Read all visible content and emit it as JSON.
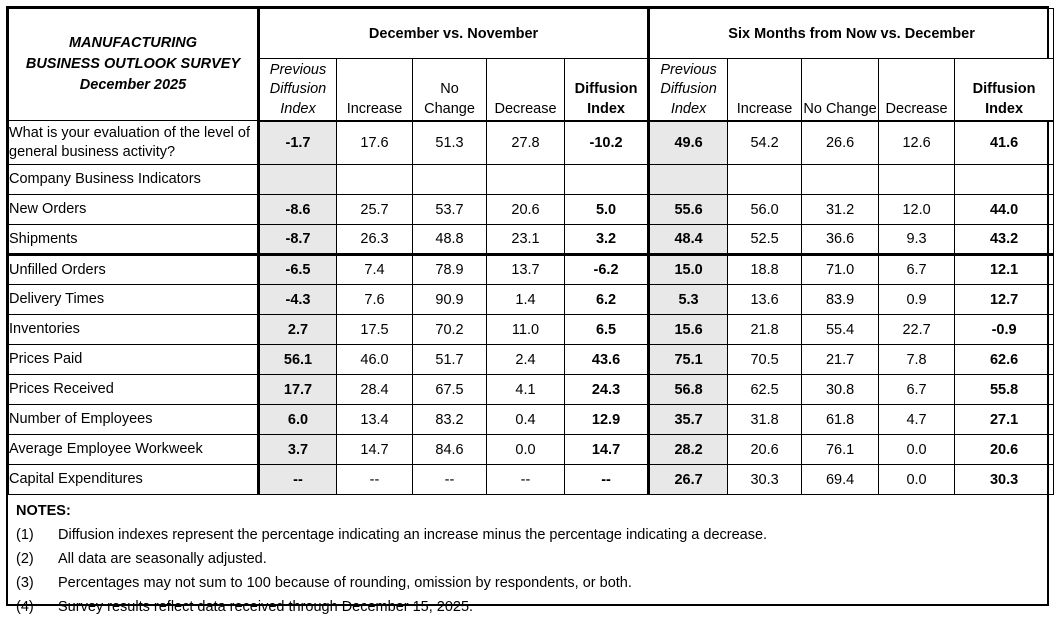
{
  "page": {
    "title_lines": [
      "MANUFACTURING",
      "BUSINESS OUTLOOK SURVEY",
      "December 2025"
    ]
  },
  "table": {
    "section_headers": [
      "December vs. November",
      "Six Months from Now vs. December"
    ],
    "sub_headers": [
      "Previous Diffusion Index",
      "Increase",
      "No Change",
      "Decrease",
      "Diffusion Index"
    ],
    "rows": [
      {
        "label": "What is your evaluation of the level of general business activity?",
        "tall": true,
        "thick_bottom": false,
        "dec_vs_nov": [
          "-1.7",
          "17.6",
          "51.3",
          "27.8",
          "-10.2"
        ],
        "six_months": [
          "49.6",
          "54.2",
          "26.6",
          "12.6",
          "41.6"
        ]
      },
      {
        "label": "Company Business Indicators",
        "tall": false,
        "thick_bottom": false,
        "dec_vs_nov": [
          "",
          "",
          "",
          "",
          ""
        ],
        "six_months": [
          "",
          "",
          "",
          "",
          ""
        ]
      },
      {
        "label": "New Orders",
        "tall": false,
        "thick_bottom": false,
        "dec_vs_nov": [
          "-8.6",
          "25.7",
          "53.7",
          "20.6",
          "5.0"
        ],
        "six_months": [
          "55.6",
          "56.0",
          "31.2",
          "12.0",
          "44.0"
        ]
      },
      {
        "label": "Shipments",
        "tall": false,
        "thick_bottom": true,
        "dec_vs_nov": [
          "-8.7",
          "26.3",
          "48.8",
          "23.1",
          "3.2"
        ],
        "six_months": [
          "48.4",
          "52.5",
          "36.6",
          "9.3",
          "43.2"
        ]
      },
      {
        "label": "Unfilled Orders",
        "tall": false,
        "thick_bottom": false,
        "dec_vs_nov": [
          "-6.5",
          "7.4",
          "78.9",
          "13.7",
          "-6.2"
        ],
        "six_months": [
          "15.0",
          "18.8",
          "71.0",
          "6.7",
          "12.1"
        ]
      },
      {
        "label": "Delivery Times",
        "tall": false,
        "thick_bottom": false,
        "dec_vs_nov": [
          "-4.3",
          "7.6",
          "90.9",
          "1.4",
          "6.2"
        ],
        "six_months": [
          "5.3",
          "13.6",
          "83.9",
          "0.9",
          "12.7"
        ]
      },
      {
        "label": "Inventories",
        "tall": false,
        "thick_bottom": false,
        "dec_vs_nov": [
          "2.7",
          "17.5",
          "70.2",
          "11.0",
          "6.5"
        ],
        "six_months": [
          "15.6",
          "21.8",
          "55.4",
          "22.7",
          "-0.9"
        ]
      },
      {
        "label": "Prices Paid",
        "tall": false,
        "thick_bottom": false,
        "dec_vs_nov": [
          "56.1",
          "46.0",
          "51.7",
          "2.4",
          "43.6"
        ],
        "six_months": [
          "75.1",
          "70.5",
          "21.7",
          "7.8",
          "62.6"
        ]
      },
      {
        "label": "Prices Received",
        "tall": false,
        "thick_bottom": false,
        "dec_vs_nov": [
          "17.7",
          "28.4",
          "67.5",
          "4.1",
          "24.3"
        ],
        "six_months": [
          "56.8",
          "62.5",
          "30.8",
          "6.7",
          "55.8"
        ]
      },
      {
        "label": "Number of Employees",
        "tall": false,
        "thick_bottom": false,
        "dec_vs_nov": [
          "6.0",
          "13.4",
          "83.2",
          "0.4",
          "12.9"
        ],
        "six_months": [
          "35.7",
          "31.8",
          "61.8",
          "4.7",
          "27.1"
        ]
      },
      {
        "label": "Average Employee Workweek",
        "tall": false,
        "thick_bottom": false,
        "dec_vs_nov": [
          "3.7",
          "14.7",
          "84.6",
          "0.0",
          "14.7"
        ],
        "six_months": [
          "28.2",
          "20.6",
          "76.1",
          "0.0",
          "20.6"
        ]
      },
      {
        "label": "Capital Expenditures",
        "tall": false,
        "thick_bottom": false,
        "dec_vs_nov": [
          "--",
          "--",
          "--",
          "--",
          "--"
        ],
        "six_months": [
          "26.7",
          "30.3",
          "69.4",
          "0.0",
          "30.3"
        ]
      }
    ]
  },
  "notes": {
    "heading": "NOTES:",
    "items": [
      {
        "num": "(1)",
        "text": "Diffusion indexes represent the percentage indicating an increase minus the percentage indicating a decrease."
      },
      {
        "num": "(2)",
        "text": "All data are seasonally adjusted."
      },
      {
        "num": "(3)",
        "text": "Percentages may not sum to 100 because of rounding, omission by respondents, or both."
      },
      {
        "num": "(4)",
        "text": "Survey results reflect data received through December 15, 2025."
      }
    ]
  },
  "colors": {
    "shaded_column": "#e8e8e8",
    "border": "#000000",
    "background": "#ffffff"
  }
}
